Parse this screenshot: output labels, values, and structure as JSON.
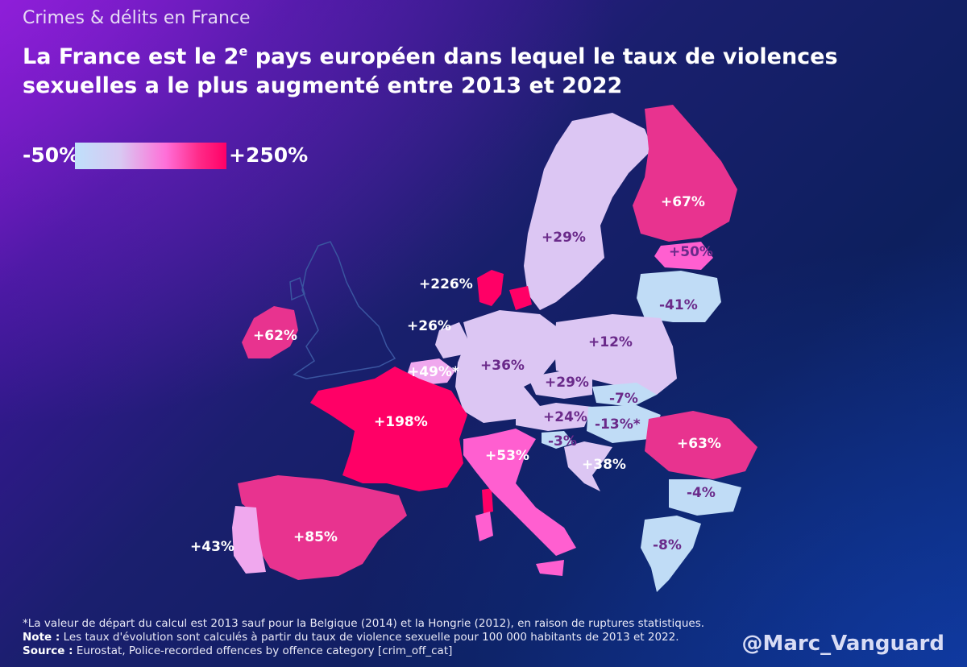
{
  "header": {
    "subtitle": "Crimes & délits en France",
    "headline_part1": "La France est le 2",
    "headline_sup": "e",
    "headline_part2": " pays européen dans lequel le taux de violences sexuelles a le plus augmenté entre 2013 et 2022"
  },
  "legend": {
    "min_label": "-50%",
    "max_label": "+250%"
  },
  "map_labels": {
    "finland": "+67%",
    "sweden": "+29%",
    "estonia": "+50%",
    "latvia_lithuania": "-41%",
    "denmark": "+226%",
    "ireland": "+62%",
    "netherlands": "+26%",
    "belgium": "+49%*",
    "germany": "+36%",
    "poland": "+12%",
    "czechia": "+29%",
    "slovakia": "-7%",
    "austria": "+24%",
    "hungary": "-13%*",
    "slovenia": "-3%",
    "croatia": "+38%",
    "romania": "+63%",
    "bulgaria": "-4%",
    "greece": "-8%",
    "france": "+198%",
    "italy": "+53%",
    "spain": "+85%",
    "portugal": "+43%"
  },
  "colors": {
    "very_high": "#ff0066",
    "high": "#e8338f",
    "mid_high": "#ff5fd0",
    "mid": "#f0a8ee",
    "low": "#dcc6f3",
    "negative": "#c0dcf6",
    "uk_outline": "#3a55a0"
  },
  "footnote": {
    "line1": "*La valeur de départ du calcul est 2013 sauf pour la Belgique (2014) et la Hongrie (2012), en raison de ruptures statistiques.",
    "note_label": "Note :",
    "note_text": " Les taux d'évolution sont calculés à partir du taux de violence sexuelle pour 100 000 habitants de 2013 et 2022.",
    "source_label": "Source :",
    "source_text": " Eurostat, Police-recorded offences by offence category [crim_off_cat]"
  },
  "handle": "@Marc_Vanguard"
}
